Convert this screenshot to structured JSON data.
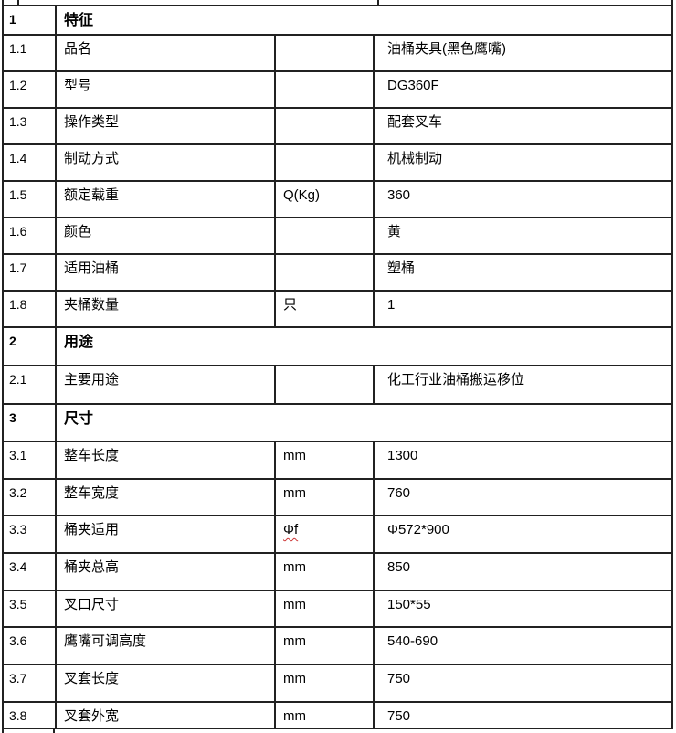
{
  "table": {
    "description": "product specification table",
    "columns": {
      "no": "",
      "label": "",
      "unit": "",
      "value": ""
    },
    "rows": [
      {
        "no": "1",
        "label": "特征",
        "unit": "",
        "value": "",
        "type": "section"
      },
      {
        "no": "1.1",
        "label": "品名",
        "unit": "",
        "value": "油桶夹具(黑色鹰嘴)",
        "type": "data"
      },
      {
        "no": "1.2",
        "label": "型号",
        "unit": "",
        "value": "DG360F",
        "type": "data"
      },
      {
        "no": "1.3",
        "label": "操作类型",
        "unit": "",
        "value": "配套叉车",
        "type": "data"
      },
      {
        "no": "1.4",
        "label": "制动方式",
        "unit": "",
        "value": "机械制动",
        "type": "data"
      },
      {
        "no": "1.5",
        "label": "额定载重",
        "unit": "Q(Kg)",
        "value": "360",
        "type": "data"
      },
      {
        "no": "1.6",
        "label": "颜色",
        "unit": "",
        "value": "黄",
        "type": "data"
      },
      {
        "no": "1.7",
        "label": "适用油桶",
        "unit": "",
        "value": "塑桶",
        "type": "data"
      },
      {
        "no": "1.8",
        "label": "夹桶数量",
        "unit": "只",
        "value": "1",
        "type": "data"
      },
      {
        "no": "2",
        "label": "用途",
        "unit": "",
        "value": "",
        "type": "section"
      },
      {
        "no": "2.1",
        "label": "主要用途",
        "unit": "",
        "value": "化工行业油桶搬运移位",
        "type": "data"
      },
      {
        "no": "3",
        "label": "尺寸",
        "unit": "",
        "value": "",
        "type": "section"
      },
      {
        "no": "3.1",
        "label": "整车长度",
        "unit": "mm",
        "value": "1300",
        "type": "data"
      },
      {
        "no": "3.2",
        "label": "整车宽度",
        "unit": "mm",
        "value": "760",
        "type": "data"
      },
      {
        "no": "3.3",
        "label": "桶夹适用",
        "unit": "Φf",
        "value": "Φ572*900",
        "type": "data",
        "unit_misspelled": true
      },
      {
        "no": "3.4",
        "label": "桶夹总高",
        "unit": "mm",
        "value": "850",
        "type": "data"
      },
      {
        "no": "3.5",
        "label": "叉口尺寸",
        "unit": "mm",
        "value": "150*55",
        "type": "data"
      },
      {
        "no": "3.6",
        "label": "鹰嘴可调高度",
        "unit": "mm",
        "value": "540-690",
        "type": "data"
      },
      {
        "no": "3.7",
        "label": "叉套长度",
        "unit": "mm",
        "value": "750",
        "type": "data"
      },
      {
        "no": "3.8",
        "label": "叉套外宽",
        "unit": "mm",
        "value": "750",
        "type": "data"
      }
    ]
  },
  "colors": {
    "border": "#212121",
    "text": "#000000",
    "background": "#ffffff",
    "spellcheck_underline": "#cc3333"
  }
}
